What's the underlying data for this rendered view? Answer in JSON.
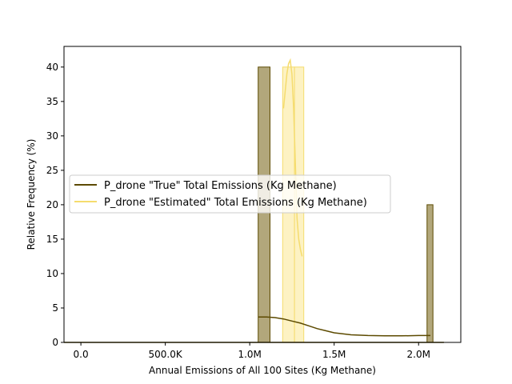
{
  "chart_data": {
    "type": "histogram",
    "title": "",
    "xlabel": "Annual Emissions of All 100 Sites (Kg Methane)",
    "ylabel": "Relative Frequency (%)",
    "xlim": [
      -100000,
      2250000
    ],
    "ylim": [
      0,
      43
    ],
    "x_ticks": [
      {
        "value": 0,
        "label": "0.0"
      },
      {
        "value": 500000,
        "label": "500.0K"
      },
      {
        "value": 1000000,
        "label": "1.0M"
      },
      {
        "value": 1500000,
        "label": "1.5M"
      },
      {
        "value": 2000000,
        "label": "2.0M"
      }
    ],
    "y_ticks": [
      0,
      5,
      10,
      15,
      20,
      25,
      30,
      35,
      40
    ],
    "grid": false,
    "legend_position": "center-left",
    "series": [
      {
        "name": "P_drone \"True\" Total Emissions (Kg Methane)",
        "color": "#5c4a00",
        "fill": "#b2a77b",
        "bars": [
          {
            "x0": 1050000,
            "x1": 1120000,
            "value": 40
          },
          {
            "x0": 2050000,
            "x1": 2085000,
            "value": 20
          }
        ],
        "kde": [
          [
            1050000,
            3.7
          ],
          [
            1100000,
            3.7
          ],
          [
            1150000,
            3.6
          ],
          [
            1200000,
            3.4
          ],
          [
            1250000,
            3.1
          ],
          [
            1300000,
            2.8
          ],
          [
            1350000,
            2.4
          ],
          [
            1400000,
            2.0
          ],
          [
            1450000,
            1.7
          ],
          [
            1500000,
            1.4
          ],
          [
            1550000,
            1.25
          ],
          [
            1600000,
            1.1
          ],
          [
            1700000,
            1.0
          ],
          [
            1800000,
            0.95
          ],
          [
            1900000,
            0.95
          ],
          [
            2000000,
            1.0
          ],
          [
            2070000,
            1.0
          ]
        ],
        "baseline": [
          -100000,
          2150000
        ]
      },
      {
        "name": "P_drone \"Estimated\" Total Emissions (Kg Methane)",
        "color": "#f5dc6e",
        "fill": "#fdf0b8",
        "bars": [
          {
            "x0": 1195000,
            "x1": 1265000,
            "value": 40
          },
          {
            "x0": 1265000,
            "x1": 1320000,
            "value": 40
          }
        ],
        "kde": [
          [
            1200000,
            34
          ],
          [
            1210000,
            36.5
          ],
          [
            1220000,
            39
          ],
          [
            1230000,
            40.5
          ],
          [
            1240000,
            41
          ],
          [
            1250000,
            39
          ],
          [
            1260000,
            34
          ],
          [
            1270000,
            26
          ],
          [
            1280000,
            18
          ],
          [
            1290000,
            15
          ],
          [
            1300000,
            13.5
          ],
          [
            1310000,
            12.5
          ]
        ]
      }
    ]
  }
}
